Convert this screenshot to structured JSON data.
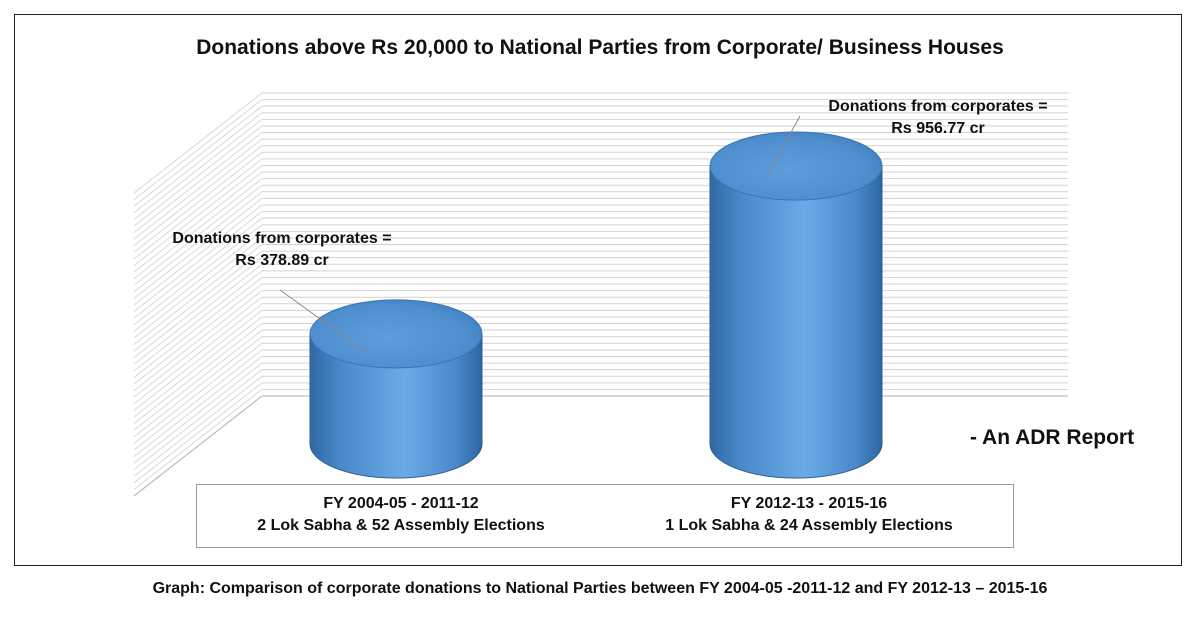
{
  "chart_data": {
    "type": "bar",
    "title": "Donations above Rs 20,000 to National Parties from Corporate/ Business Houses",
    "categories": [
      {
        "line1": "FY 2004-05 - 2011-12",
        "line2": "2 Lok Sabha & 52 Assembly Elections"
      },
      {
        "line1": "FY 2012-13 - 2015-16",
        "line2": "1 Lok Sabha & 24 Assembly Elections"
      }
    ],
    "values": [
      378.89,
      956.77
    ],
    "units": "Rs cr",
    "ylim": [
      0,
      1150
    ],
    "grid": true,
    "annotations": [
      {
        "line1": "Donations from corporates =",
        "line2": "Rs 378.89 cr"
      },
      {
        "line1": "Donations from corporates =",
        "line2": "Rs 956.77 cr"
      }
    ],
    "bar_color": "#5b9bd5"
  },
  "watermark": "- An ADR Report",
  "caption": "Graph: Comparison of corporate donations to National Parties between FY 2004-05 -2011-12 and FY 2012-13 – 2015-16"
}
